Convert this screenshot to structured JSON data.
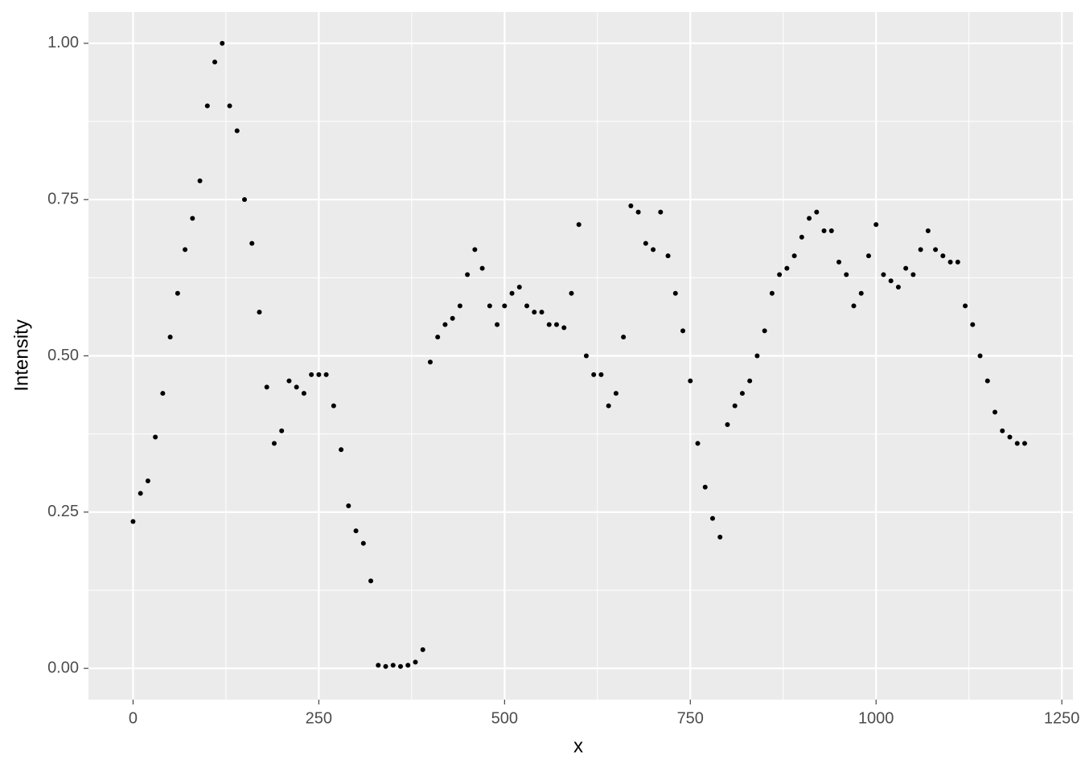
{
  "chart_data": {
    "type": "scatter",
    "x_label": "x",
    "y_label": "Intensity",
    "xlim": [
      -60,
      1265
    ],
    "ylim": [
      -0.05,
      1.05
    ],
    "xticks": [
      0,
      250,
      500,
      750,
      1000,
      1250
    ],
    "yticks": [
      {
        "value": 0,
        "label": "0.00"
      },
      0.25,
      {
        "value": 0.5,
        "label": "0.50"
      },
      0.75,
      {
        "value": 1,
        "label": "1.00"
      }
    ],
    "grid": true,
    "color": "#000000",
    "x": [
      0,
      10,
      20,
      30,
      40,
      50,
      60,
      70,
      80,
      90,
      100,
      110,
      120,
      130,
      140,
      150,
      160,
      170,
      180,
      190,
      200,
      210,
      220,
      230,
      240,
      250,
      260,
      270,
      280,
      290,
      300,
      310,
      320,
      330,
      340,
      350,
      360,
      370,
      380,
      390,
      400,
      410,
      420,
      430,
      440,
      450,
      460,
      470,
      480,
      490,
      500,
      510,
      520,
      530,
      540,
      550,
      560,
      570,
      580,
      590,
      600,
      610,
      620,
      630,
      640,
      650,
      660,
      670,
      680,
      690,
      700,
      710,
      720,
      730,
      740,
      750,
      760,
      770,
      780,
      790,
      800,
      810,
      820,
      830,
      840,
      850,
      860,
      870,
      880,
      890,
      900,
      910,
      920,
      930,
      940,
      950,
      960,
      970,
      980,
      990,
      1000,
      1010,
      1020,
      1030,
      1040,
      1050,
      1060,
      1070,
      1080,
      1090,
      1100,
      1110,
      1120,
      1130,
      1140,
      1150,
      1160,
      1170,
      1180,
      1190,
      1200
    ],
    "values": [
      0.235,
      0.28,
      0.3,
      0.37,
      0.44,
      0.53,
      0.6,
      0.67,
      0.72,
      0.78,
      0.9,
      0.97,
      1.0,
      0.9,
      0.86,
      0.75,
      0.68,
      0.57,
      0.45,
      0.36,
      0.38,
      0.46,
      0.45,
      0.44,
      0.47,
      0.47,
      0.47,
      0.42,
      0.35,
      0.26,
      0.22,
      0.2,
      0.14,
      0.005,
      0.003,
      0.005,
      0.003,
      0.005,
      0.01,
      0.03,
      0.49,
      0.53,
      0.55,
      0.56,
      0.58,
      0.63,
      0.67,
      0.64,
      0.58,
      0.55,
      0.58,
      0.6,
      0.61,
      0.58,
      0.57,
      0.57,
      0.55,
      0.55,
      0.545,
      0.6,
      0.71,
      0.5,
      0.47,
      0.47,
      0.42,
      0.44,
      0.53,
      0.74,
      0.73,
      0.68,
      0.67,
      0.73,
      0.66,
      0.6,
      0.54,
      0.46,
      0.36,
      0.29,
      0.24,
      0.21,
      0.39,
      0.42,
      0.44,
      0.46,
      0.5,
      0.54,
      0.6,
      0.63,
      0.64,
      0.66,
      0.69,
      0.72,
      0.73,
      0.7,
      0.7,
      0.65,
      0.63,
      0.58,
      0.6,
      0.66,
      0.71,
      0.63,
      0.62,
      0.61,
      0.64,
      0.63,
      0.67,
      0.7,
      0.67,
      0.66,
      0.65,
      0.65,
      0.58,
      0.55,
      0.5,
      0.46,
      0.41,
      0.38,
      0.37,
      0.36,
      0.36
    ]
  }
}
